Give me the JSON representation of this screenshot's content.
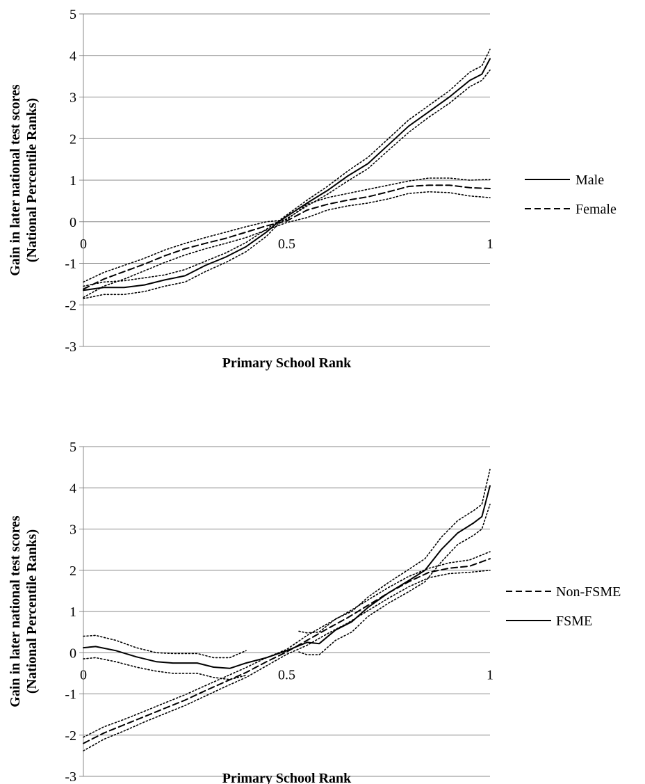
{
  "chart_data": [
    {
      "type": "line",
      "xlabel": "Primary School Rank",
      "ylabel_lines": [
        "Gain in later national test scores",
        "(National Percentile Ranks)"
      ],
      "xlim": [
        0,
        1
      ],
      "ylim": [
        -3,
        5
      ],
      "xticks": [
        {
          "value": 0,
          "label": "0"
        },
        {
          "value": 0.5,
          "label": "0.5"
        },
        {
          "value": 1,
          "label": "1"
        }
      ],
      "yticks": [
        {
          "value": 5,
          "label": "5"
        },
        {
          "value": 4,
          "label": "4"
        },
        {
          "value": 3,
          "label": "3"
        },
        {
          "value": 2,
          "label": "2"
        },
        {
          "value": 1,
          "label": "1"
        },
        {
          "value": 0,
          "label": "0"
        },
        {
          "value": -1,
          "label": "-1"
        },
        {
          "value": -2,
          "label": "-2"
        },
        {
          "value": -3,
          "label": "-3"
        }
      ],
      "grid": "horizontal",
      "legend_position": "right",
      "series": [
        {
          "name": "Male",
          "style": "solid",
          "legend": true,
          "x": [
            0,
            0.05,
            0.1,
            0.15,
            0.2,
            0.25,
            0.3,
            0.35,
            0.4,
            0.45,
            0.48,
            0.55,
            0.6,
            0.65,
            0.7,
            0.75,
            0.8,
            0.85,
            0.9,
            0.95,
            0.98,
            1.0
          ],
          "y": [
            -1.65,
            -1.58,
            -1.58,
            -1.52,
            -1.4,
            -1.3,
            -1.05,
            -0.85,
            -0.6,
            -0.25,
            0.0,
            0.45,
            0.75,
            1.1,
            1.4,
            1.85,
            2.3,
            2.65,
            3.0,
            3.4,
            3.55,
            3.92
          ]
        },
        {
          "name": "",
          "style": "dotted",
          "legend": false,
          "x": [
            0,
            0.05,
            0.1,
            0.15,
            0.2,
            0.25,
            0.3,
            0.35,
            0.4,
            0.45,
            0.48,
            0.55,
            0.6,
            0.65,
            0.7,
            0.75,
            0.8,
            0.85,
            0.9,
            0.95,
            0.98,
            1.0
          ],
          "y": [
            -1.55,
            -1.45,
            -1.42,
            -1.35,
            -1.28,
            -1.15,
            -0.95,
            -0.75,
            -0.5,
            -0.18,
            0.02,
            0.52,
            0.85,
            1.22,
            1.55,
            2.0,
            2.45,
            2.8,
            3.15,
            3.6,
            3.75,
            4.15
          ]
        },
        {
          "name": "",
          "style": "dotted",
          "legend": false,
          "x": [
            0,
            0.05,
            0.1,
            0.15,
            0.2,
            0.25,
            0.3,
            0.35,
            0.4,
            0.45,
            0.48,
            0.55,
            0.6,
            0.65,
            0.7,
            0.75,
            0.8,
            0.85,
            0.9,
            0.95,
            0.98,
            1.0
          ],
          "y": [
            -1.85,
            -1.75,
            -1.75,
            -1.68,
            -1.55,
            -1.45,
            -1.2,
            -0.98,
            -0.72,
            -0.35,
            -0.05,
            0.38,
            0.66,
            0.98,
            1.28,
            1.72,
            2.15,
            2.52,
            2.85,
            3.25,
            3.4,
            3.65
          ]
        },
        {
          "name": "Female",
          "style": "dashed",
          "legend": true,
          "x": [
            0,
            0.05,
            0.1,
            0.15,
            0.2,
            0.25,
            0.3,
            0.35,
            0.4,
            0.45,
            0.5,
            0.55,
            0.6,
            0.65,
            0.7,
            0.75,
            0.8,
            0.85,
            0.9,
            0.95,
            1.0
          ],
          "y": [
            -1.62,
            -1.38,
            -1.2,
            -1.02,
            -0.82,
            -0.65,
            -0.52,
            -0.4,
            -0.25,
            -0.1,
            0.02,
            0.28,
            0.42,
            0.52,
            0.6,
            0.72,
            0.85,
            0.88,
            0.88,
            0.82,
            0.8
          ]
        },
        {
          "name": "",
          "style": "dotted",
          "legend": false,
          "x": [
            0,
            0.05,
            0.1,
            0.15,
            0.2,
            0.25,
            0.3,
            0.35,
            0.4,
            0.45,
            0.5,
            0.55,
            0.6,
            0.65,
            0.7,
            0.75,
            0.8,
            0.85,
            0.9,
            0.95,
            1.0
          ],
          "y": [
            -1.45,
            -1.22,
            -1.05,
            -0.88,
            -0.68,
            -0.52,
            -0.38,
            -0.25,
            -0.12,
            0.0,
            0.05,
            0.42,
            0.58,
            0.68,
            0.78,
            0.88,
            0.98,
            1.05,
            1.05,
            1.0,
            1.02
          ]
        },
        {
          "name": "",
          "style": "dotted",
          "legend": false,
          "x": [
            0,
            0.05,
            0.1,
            0.15,
            0.2,
            0.25,
            0.3,
            0.35,
            0.4,
            0.45,
            0.5,
            0.55,
            0.6,
            0.65,
            0.7,
            0.75,
            0.8,
            0.85,
            0.9,
            0.95,
            1.0
          ],
          "y": [
            -1.82,
            -1.55,
            -1.38,
            -1.18,
            -0.98,
            -0.8,
            -0.65,
            -0.52,
            -0.38,
            -0.2,
            -0.02,
            0.1,
            0.28,
            0.38,
            0.45,
            0.55,
            0.68,
            0.72,
            0.7,
            0.62,
            0.58
          ]
        }
      ]
    },
    {
      "type": "line",
      "xlabel": "Primary School Rank",
      "ylabel_lines": [
        "Gain in later national test scores",
        "(National Percentile Ranks)"
      ],
      "xlim": [
        0,
        1
      ],
      "ylim": [
        -3,
        5
      ],
      "xticks": [
        {
          "value": 0,
          "label": "0"
        },
        {
          "value": 0.5,
          "label": "0.5"
        },
        {
          "value": 1,
          "label": "1"
        }
      ],
      "yticks": [
        {
          "value": 5,
          "label": "5"
        },
        {
          "value": 4,
          "label": "4"
        },
        {
          "value": 3,
          "label": "3"
        },
        {
          "value": 2,
          "label": "2"
        },
        {
          "value": 1,
          "label": "1"
        },
        {
          "value": 0,
          "label": "0"
        },
        {
          "value": -1,
          "label": "-1"
        },
        {
          "value": -2,
          "label": "-2"
        },
        {
          "value": -3,
          "label": "-3"
        }
      ],
      "grid": "horizontal",
      "legend_position": "right",
      "series": [
        {
          "name": "Non-FSME",
          "style": "dashed",
          "legend": true,
          "x": [
            0,
            0.05,
            0.1,
            0.15,
            0.2,
            0.25,
            0.3,
            0.35,
            0.4,
            0.45,
            0.5,
            0.55,
            0.6,
            0.65,
            0.7,
            0.75,
            0.8,
            0.85,
            0.9,
            0.95,
            1.0
          ],
          "y": [
            -2.2,
            -1.95,
            -1.75,
            -1.55,
            -1.35,
            -1.15,
            -0.92,
            -0.7,
            -0.48,
            -0.22,
            0.02,
            0.3,
            0.58,
            0.85,
            1.15,
            1.45,
            1.72,
            1.95,
            2.05,
            2.1,
            2.28
          ]
        },
        {
          "name": "",
          "style": "dotted",
          "legend": false,
          "x": [
            0,
            0.05,
            0.1,
            0.15,
            0.2,
            0.25,
            0.3,
            0.35,
            0.4,
            0.45,
            0.5,
            0.55,
            0.6,
            0.65,
            0.7,
            0.75,
            0.8,
            0.85,
            0.9,
            0.95,
            1.0
          ],
          "y": [
            -2.05,
            -1.8,
            -1.62,
            -1.42,
            -1.22,
            -1.02,
            -0.8,
            -0.58,
            -0.36,
            -0.12,
            0.08,
            0.42,
            0.7,
            0.98,
            1.28,
            1.58,
            1.85,
            2.05,
            2.18,
            2.25,
            2.45
          ]
        },
        {
          "name": "",
          "style": "dotted",
          "legend": false,
          "x": [
            0,
            0.05,
            0.1,
            0.15,
            0.2,
            0.25,
            0.3,
            0.35,
            0.4,
            0.45,
            0.5,
            0.55,
            0.6,
            0.65,
            0.7,
            0.75,
            0.8,
            0.85,
            0.9,
            0.95,
            1.0
          ],
          "y": [
            -2.38,
            -2.1,
            -1.9,
            -1.68,
            -1.48,
            -1.28,
            -1.05,
            -0.82,
            -0.6,
            -0.32,
            -0.04,
            0.18,
            0.46,
            0.72,
            1.02,
            1.32,
            1.6,
            1.82,
            1.92,
            1.95,
            2.0
          ]
        },
        {
          "name": "FSME",
          "style": "solid",
          "legend": true,
          "x": [
            0,
            0.03,
            0.08,
            0.13,
            0.18,
            0.22,
            0.28,
            0.32,
            0.36,
            0.4,
            0.45,
            0.5,
            0.55,
            0.58,
            0.62,
            0.66,
            0.7,
            0.75,
            0.8,
            0.84,
            0.88,
            0.92,
            0.96,
            0.98,
            1.0
          ],
          "y": [
            0.12,
            0.15,
            0.05,
            -0.1,
            -0.22,
            -0.25,
            -0.25,
            -0.35,
            -0.38,
            -0.25,
            -0.12,
            0.05,
            0.25,
            0.22,
            0.55,
            0.75,
            1.1,
            1.45,
            1.75,
            2.0,
            2.5,
            2.9,
            3.15,
            3.3,
            4.05
          ]
        },
        {
          "name": "",
          "style": "dotted",
          "legend": false,
          "x": [
            0,
            0.03,
            0.08,
            0.13,
            0.18,
            0.22,
            0.28,
            0.32,
            0.36,
            0.4
          ],
          "y": [
            0.4,
            0.42,
            0.3,
            0.12,
            0.0,
            -0.02,
            -0.02,
            -0.12,
            -0.12,
            0.05
          ]
        },
        {
          "name": "",
          "style": "dotted",
          "legend": false,
          "x": [
            0,
            0.03,
            0.08,
            0.13,
            0.18,
            0.22,
            0.28,
            0.32,
            0.36,
            0.4
          ],
          "y": [
            -0.15,
            -0.12,
            -0.22,
            -0.35,
            -0.45,
            -0.5,
            -0.5,
            -0.6,
            -0.65,
            -0.55
          ]
        },
        {
          "name": "",
          "style": "dotted",
          "legend": false,
          "x": [
            0.53,
            0.55,
            0.58,
            0.62,
            0.66,
            0.7,
            0.75,
            0.8,
            0.84,
            0.88,
            0.92,
            0.96,
            0.98,
            1.0
          ],
          "y": [
            0.52,
            0.48,
            0.5,
            0.82,
            1.0,
            1.35,
            1.7,
            2.02,
            2.28,
            2.8,
            3.2,
            3.45,
            3.6,
            4.45
          ]
        },
        {
          "name": "",
          "style": "dotted",
          "legend": false,
          "x": [
            0.53,
            0.55,
            0.58,
            0.62,
            0.66,
            0.7,
            0.75,
            0.8,
            0.84,
            0.88,
            0.92,
            0.96,
            0.98,
            1.0
          ],
          "y": [
            0.02,
            -0.05,
            -0.05,
            0.3,
            0.5,
            0.88,
            1.2,
            1.48,
            1.72,
            2.2,
            2.62,
            2.85,
            3.0,
            3.6
          ]
        }
      ]
    }
  ]
}
